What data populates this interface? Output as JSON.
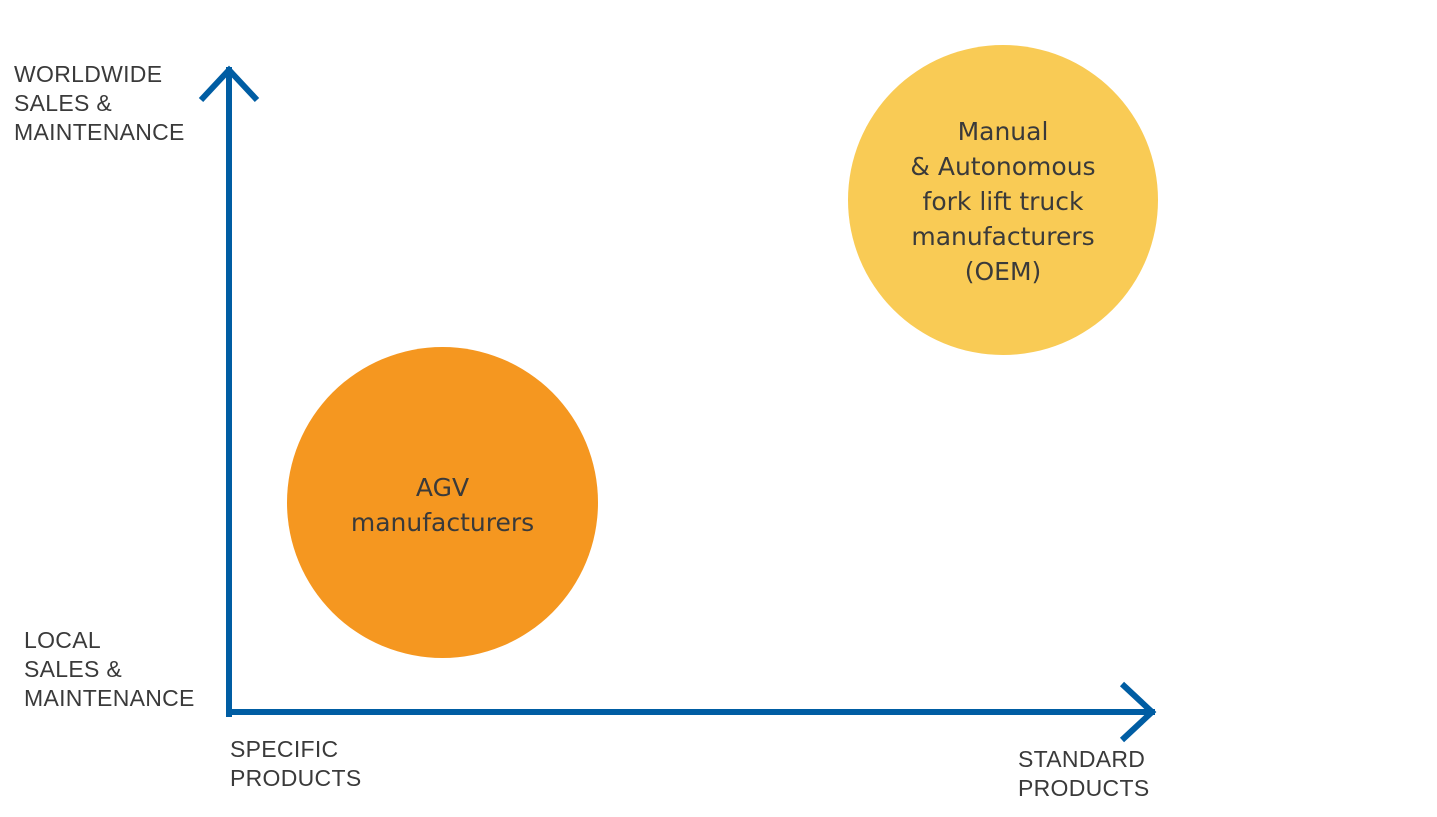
{
  "diagram": {
    "y_axis": {
      "top_label_lines": [
        "WORLDWIDE",
        "SALES &",
        "MAINTENANCE"
      ],
      "bottom_label_lines": [
        "LOCAL",
        "SALES &",
        "MAINTENANCE"
      ]
    },
    "x_axis": {
      "left_label_lines": [
        "SPECIFIC",
        "PRODUCTS"
      ],
      "right_label_lines": [
        "STANDARD",
        "PRODUCTS"
      ]
    },
    "bubbles": [
      {
        "id": "agv",
        "text_lines": [
          "AGV",
          "manufacturers"
        ],
        "color": "#f59720"
      },
      {
        "id": "oem",
        "text_lines": [
          "Manual",
          "& Autonomous",
          "fork lift truck",
          "manufacturers",
          "(OEM)"
        ],
        "color": "#f9cb55"
      }
    ],
    "axis_color": "#005da3"
  }
}
